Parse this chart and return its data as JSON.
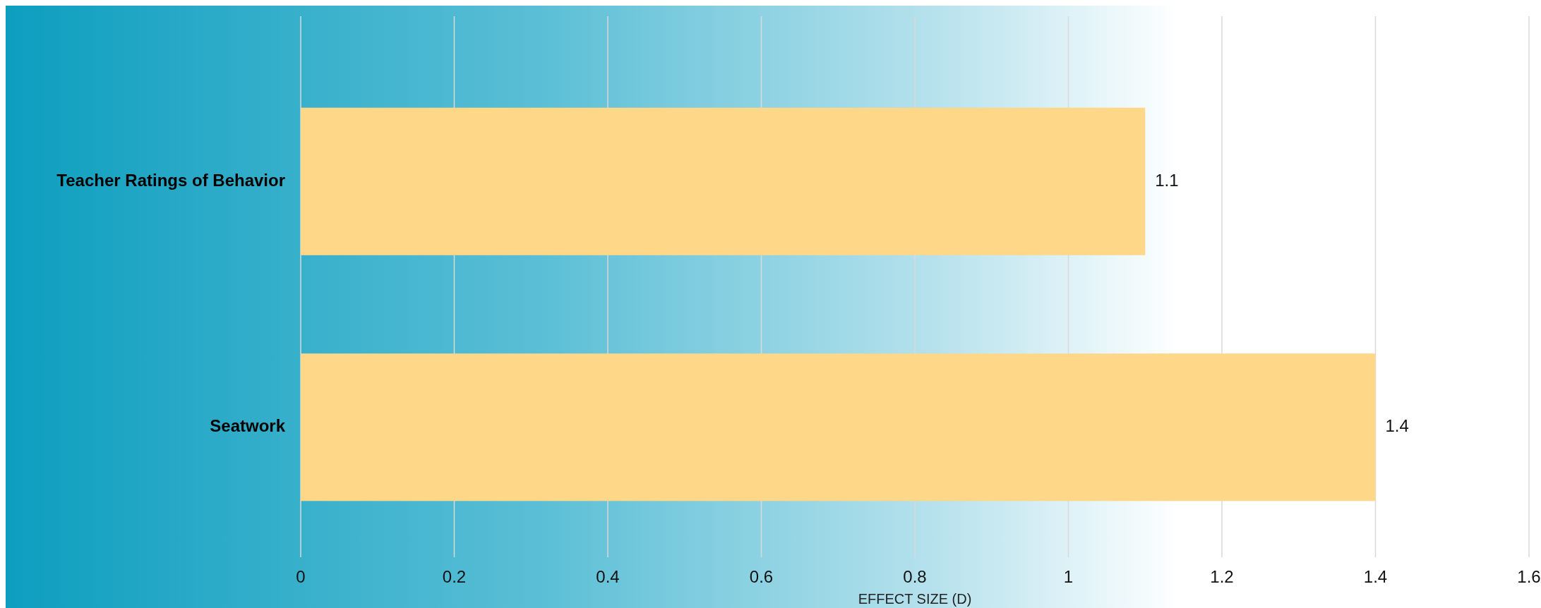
{
  "chart_data": {
    "type": "bar",
    "orientation": "horizontal",
    "xlabel": "EFFECT SIZE (D)",
    "categories": [
      "Teacher Ratings of Behavior",
      "Seatwork"
    ],
    "values": [
      1.1,
      1.4
    ],
    "color": "#fed888",
    "xlim": [
      0,
      1.6
    ],
    "xticks": [
      0,
      0.2,
      0.4,
      0.6,
      0.8,
      1,
      1.2,
      1.4,
      1.6
    ],
    "grid": "x",
    "data_labels": true
  }
}
